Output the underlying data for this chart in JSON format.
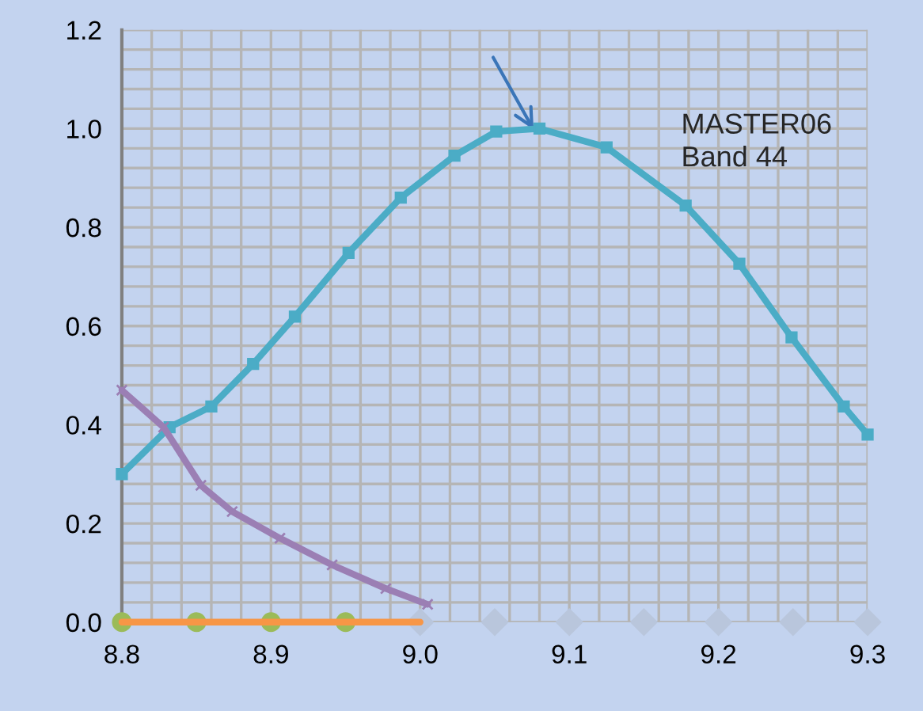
{
  "chart_data": {
    "type": "line",
    "xlim": [
      8.8,
      9.3
    ],
    "ylim": [
      0,
      1.2
    ],
    "xticks": [
      8.8,
      8.9,
      {
        "value": 9.0,
        "label": "9.0"
      },
      9.1,
      9.2,
      9.3
    ],
    "yticks": [
      {
        "value": 0,
        "label": "0.0"
      },
      0.2,
      0.4,
      0.6,
      0.8,
      {
        "value": 1.0,
        "label": "1.0"
      },
      1.2
    ],
    "grid": true,
    "legend": false,
    "annotations": [
      "MASTER06\nBand 44"
    ],
    "series": [
      {
        "color": "#4bacc6",
        "marker": "square",
        "x": [
          8.8,
          8.832,
          8.86,
          8.888,
          8.916,
          8.952,
          8.987,
          9.023,
          9.051,
          9.08,
          9.125,
          9.178,
          9.214,
          9.249,
          9.284,
          9.3
        ],
        "values": [
          0.3,
          0.395,
          0.437,
          0.523,
          0.619,
          0.748,
          0.86,
          0.945,
          0.994,
          1.0,
          0.962,
          0.844,
          0.726,
          0.577,
          0.437,
          0.38
        ]
      },
      {
        "color": "#9b7fb4",
        "marker": "cross",
        "x": [
          8.8,
          8.828,
          8.853,
          8.874,
          8.906,
          8.941,
          8.977,
          9.005
        ],
        "values": [
          0.47,
          0.395,
          0.277,
          0.224,
          0.17,
          0.116,
          0.068,
          0.036
        ]
      },
      {
        "type": "scatter",
        "color": "#9bbb59",
        "marker": "circle",
        "x": [
          8.8,
          8.85,
          8.9,
          8.95
        ],
        "values": [
          0,
          0,
          0,
          0
        ]
      },
      {
        "type": "scatter",
        "color": "#b9c6dc",
        "marker": "diamond",
        "x": [
          9.0,
          9.05,
          9.1,
          9.15,
          9.2,
          9.25,
          9.3
        ],
        "values": [
          0,
          0,
          0,
          0,
          0,
          0,
          0
        ]
      },
      {
        "color": "#f79646",
        "marker": "none",
        "x": [
          8.8,
          9.0
        ],
        "values": [
          0,
          0
        ]
      }
    ]
  }
}
